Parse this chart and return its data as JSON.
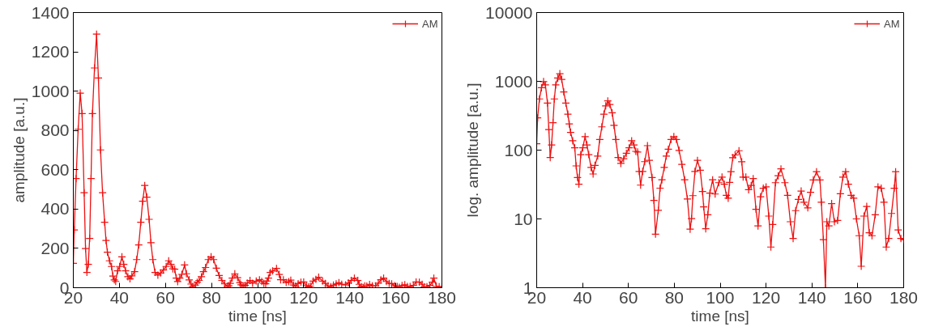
{
  "chart_data": [
    {
      "type": "line",
      "xlabel": "time [ns]",
      "ylabel": "amplitude [a.u.]",
      "xlim": [
        20,
        180
      ],
      "xticks": [
        20,
        40,
        60,
        80,
        100,
        120,
        140,
        160,
        180
      ],
      "ylim": [
        0,
        1400
      ],
      "yticks": [
        0,
        200,
        400,
        600,
        800,
        1000,
        1200,
        1400
      ],
      "grid": false,
      "legend": "top right",
      "marker": "cross",
      "line_style": "solid",
      "series": [
        {
          "name": "AM",
          "color": "#ee1111",
          "x": [
            20,
            20.4,
            21.2,
            22.1,
            23,
            23.8,
            24.7,
            25.3,
            25.9,
            26.5,
            27.1,
            27.7,
            28.3,
            29.2,
            30.1,
            30.9,
            31.8,
            32.7,
            33.6,
            34.2,
            34.8,
            35.7,
            36.6,
            37.2,
            37.8,
            38.4,
            39.2,
            40.1,
            41.1,
            41.9,
            42.7,
            43.7,
            44.6,
            45.4,
            46.6,
            47.5,
            48.4,
            49.3,
            50.1,
            51,
            51.9,
            52.9,
            53.7,
            54.5,
            55.5,
            56.7,
            57.9,
            59.1,
            60.3,
            61.4,
            62.4,
            63.2,
            64,
            64.7,
            65.3,
            66.2,
            67.1,
            68.3,
            69.1,
            70.3,
            71.1,
            71.8,
            73,
            73.8,
            74.6,
            75.6,
            76.5,
            77.4,
            78.6,
            79.8,
            80.9,
            82.1,
            83.3,
            84.5,
            85.7,
            86.9,
            87.5,
            88.1,
            89,
            90.1,
            91.3,
            92.3,
            92.8,
            93.7,
            94.6,
            95.5,
            96.7,
            97.8,
            99.4,
            100.8,
            101.8,
            102.7,
            103.5,
            104.1,
            104.7,
            105.5,
            106.5,
            108.2,
            109.4,
            110,
            111.2,
            112.4,
            113.5,
            114.4,
            115.6,
            116.5,
            117.6,
            118.8,
            120,
            121.2,
            122.1,
            122.9,
            124.1,
            125.3,
            126.5,
            128.2,
            129.4,
            130.6,
            131.8,
            132.9,
            134.1,
            135.3,
            136.5,
            138.2,
            139.4,
            140.6,
            142,
            143.5,
            144.1,
            145,
            145.9,
            146.5,
            147.4,
            148.6,
            149.8,
            151.2,
            152.4,
            153.5,
            154.7,
            155.9,
            157.1,
            158.2,
            159.4,
            160.6,
            161.5,
            162.7,
            163.9,
            165,
            166.2,
            167.6,
            168.8,
            170.2,
            171.4,
            172.4,
            173.5,
            174.7,
            175.9,
            176.5,
            177.6,
            178.8,
            180
          ],
          "values": [
            124,
            294,
            555,
            806,
            990,
            886,
            483,
            199,
            78,
            119,
            251,
            555,
            886,
            1118,
            1290,
            1067,
            701,
            483,
            333,
            240,
            181,
            137,
            108,
            59,
            40,
            32,
            86,
            108,
            157,
            119,
            86,
            56,
            45,
            60,
            82,
            143,
            218,
            333,
            440,
            520,
            461,
            348,
            229,
            143,
            78,
            64,
            75,
            90,
            108,
            137,
            119,
            96,
            94,
            49,
            31,
            49,
            68,
            116,
            71,
            40,
            18.6,
            6,
            13.3,
            28,
            37,
            56,
            82,
            103,
            143,
            157,
            143,
            99,
            62,
            37,
            19.5,
            7.1,
            10.1,
            21.8,
            49,
            71,
            51,
            25,
            15,
            7.2,
            11.5,
            23.7,
            37,
            23,
            33.6,
            40.5,
            32,
            22,
            20,
            34,
            48.6,
            77.6,
            85,
            98,
            67.6,
            40.5,
            40.5,
            26.6,
            30.6,
            38.6,
            13.8,
            7.9,
            21,
            27.9,
            29.2,
            11,
            3.9,
            8.3,
            33.6,
            42.4,
            53.4,
            33.6,
            22,
            9.1,
            5.2,
            13.2,
            19.2,
            25.4,
            17.5,
            14.5,
            24.3,
            36.9,
            48.6,
            36.9,
            17.5,
            5,
            1,
            9.1,
            7.9,
            16.7,
            9.1,
            9.5,
            23.2,
            40.5,
            48.6,
            32,
            22,
            20,
            10,
            5.7,
            2.05,
            11,
            15.2,
            6.3,
            5.7,
            11.5,
            29.2,
            27.9,
            17.5,
            3.9,
            5.2,
            12,
            27.9,
            48.6,
            6.9,
            5.2,
            5
          ]
        }
      ]
    },
    {
      "type": "line",
      "xlabel": "time [ns]",
      "ylabel": "log. amplitude [a.u.]",
      "log": true,
      "xlim": [
        20,
        180
      ],
      "xticks": [
        20,
        40,
        60,
        80,
        100,
        120,
        140,
        160,
        180
      ],
      "ylim": [
        1,
        10000
      ],
      "yticks": [
        1,
        10,
        100,
        1000,
        10000
      ],
      "grid": false,
      "legend": "top right",
      "marker": "cross",
      "line_style": "solid",
      "series": [
        {
          "name": "AM",
          "color": "#ee1111",
          "x": [
            20,
            20.4,
            21.2,
            22.1,
            23,
            23.8,
            24.7,
            25.3,
            25.9,
            26.5,
            27.1,
            27.7,
            28.3,
            29.2,
            30.1,
            30.9,
            31.8,
            32.7,
            33.6,
            34.2,
            34.8,
            35.7,
            36.6,
            37.2,
            37.8,
            38.4,
            39.2,
            40.1,
            41.1,
            41.9,
            42.7,
            43.7,
            44.6,
            45.4,
            46.6,
            47.5,
            48.4,
            49.3,
            50.1,
            51,
            51.9,
            52.9,
            53.7,
            54.5,
            55.5,
            56.7,
            57.9,
            59.1,
            60.3,
            61.4,
            62.4,
            63.2,
            64,
            64.7,
            65.3,
            66.2,
            67.1,
            68.3,
            69.1,
            70.3,
            71.1,
            71.8,
            73,
            73.8,
            74.6,
            75.6,
            76.5,
            77.4,
            78.6,
            79.8,
            80.9,
            82.1,
            83.3,
            84.5,
            85.7,
            86.9,
            87.5,
            88.1,
            89,
            90.1,
            91.3,
            92.3,
            92.8,
            93.7,
            94.6,
            95.5,
            96.7,
            97.8,
            99.4,
            100.8,
            101.8,
            102.7,
            103.5,
            104.1,
            104.7,
            105.5,
            106.5,
            108.2,
            109.4,
            110,
            111.2,
            112.4,
            113.5,
            114.4,
            115.6,
            116.5,
            117.6,
            118.8,
            120,
            121.2,
            122.1,
            122.9,
            124.1,
            125.3,
            126.5,
            128.2,
            129.4,
            130.6,
            131.8,
            132.9,
            134.1,
            135.3,
            136.5,
            138.2,
            139.4,
            140.6,
            142,
            143.5,
            144.1,
            145,
            145.9,
            146.5,
            147.4,
            148.6,
            149.8,
            151.2,
            152.4,
            153.5,
            154.7,
            155.9,
            157.1,
            158.2,
            159.4,
            160.6,
            161.5,
            162.7,
            163.9,
            165,
            166.2,
            167.6,
            168.8,
            170.2,
            171.4,
            172.4,
            173.5,
            174.7,
            175.9,
            176.5,
            177.6,
            178.8,
            180
          ],
          "values": [
            124,
            294,
            555,
            806,
            990,
            886,
            483,
            199,
            78,
            119,
            251,
            555,
            886,
            1118,
            1290,
            1067,
            701,
            483,
            333,
            240,
            181,
            137,
            108,
            59,
            40,
            32,
            86,
            108,
            157,
            119,
            86,
            56,
            45,
            60,
            82,
            143,
            218,
            333,
            440,
            520,
            461,
            348,
            229,
            143,
            78,
            64,
            75,
            90,
            108,
            137,
            119,
            96,
            94,
            49,
            31,
            49,
            68,
            116,
            71,
            40,
            18.6,
            6,
            13.3,
            28,
            37,
            56,
            82,
            103,
            143,
            157,
            143,
            99,
            62,
            37,
            19.5,
            7.1,
            10.1,
            21.8,
            49,
            71,
            51,
            25,
            15,
            7.2,
            11.5,
            23.7,
            37,
            23,
            33.6,
            40.5,
            32,
            22,
            20,
            34,
            48.6,
            77.6,
            85,
            98,
            67.6,
            40.5,
            40.5,
            26.6,
            30.6,
            38.6,
            13.8,
            7.9,
            21,
            27.9,
            29.2,
            11,
            3.9,
            8.3,
            33.6,
            42.4,
            53.4,
            33.6,
            22,
            9.1,
            5.2,
            13.2,
            19.2,
            25.4,
            17.5,
            14.5,
            24.3,
            36.9,
            48.6,
            36.9,
            17.5,
            5,
            1,
            9.1,
            7.9,
            16.7,
            9.1,
            9.5,
            23.2,
            40.5,
            48.6,
            32,
            22,
            20,
            10,
            5.7,
            2.05,
            11,
            15.2,
            6.3,
            5.7,
            11.5,
            29.2,
            27.9,
            17.5,
            3.9,
            5.2,
            12,
            27.9,
            48.6,
            6.9,
            5.2,
            5
          ]
        }
      ]
    }
  ]
}
